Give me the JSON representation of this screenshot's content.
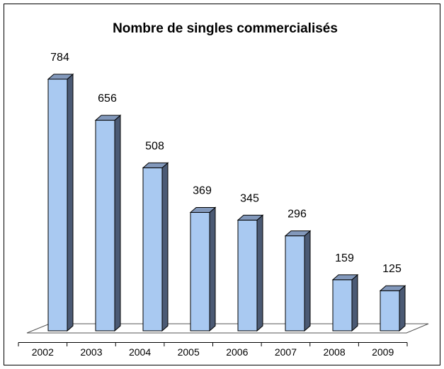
{
  "chart_data": {
    "type": "bar",
    "title": "Nombre de singles commercialisés",
    "categories": [
      "2002",
      "2003",
      "2004",
      "2005",
      "2006",
      "2007",
      "2008",
      "2009"
    ],
    "values": [
      784,
      656,
      508,
      369,
      345,
      296,
      159,
      125
    ],
    "color": "#a9c9f1"
  }
}
